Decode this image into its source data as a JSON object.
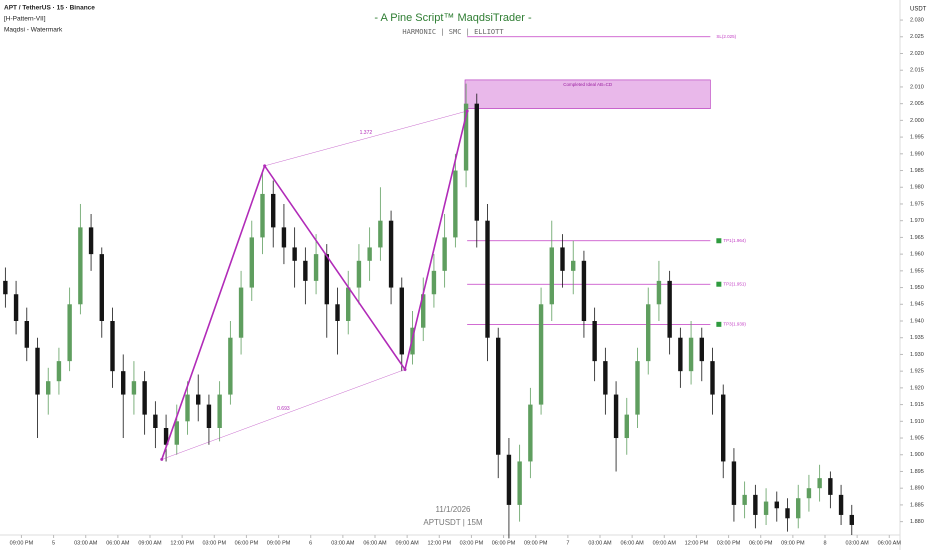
{
  "chart_data": {
    "type": "candlestick",
    "header": [
      "APT / TetherUS · 15 · Binance",
      "[H-Pattern-VII]",
      "Maqdsi - Watermark"
    ],
    "title": "- A Pine Script™ MaqdsiTrader -",
    "subtitle": "HARMONIC | SMC | ELLIOTT",
    "watermark": [
      "11/1/2026",
      "APTUSDT | 15M"
    ],
    "y_axis_label": "USDT",
    "up_color": "#5f9e5f",
    "down_color": "#151515",
    "x": [
      0.5,
      1.5,
      2.5,
      3.5,
      4.5,
      5.5,
      6.5,
      7.5,
      8.5,
      9.5,
      10.5,
      11.5,
      12.5,
      13.5,
      14.5,
      15.5,
      16.5,
      17.5,
      18.5,
      19.5,
      20.5,
      21.5,
      22.5,
      23.5,
      24.5,
      25.5,
      26.5,
      27.5,
      28.5,
      29.5,
      30.5,
      31.5,
      32.5,
      33.5,
      34.5,
      35.5,
      36.5,
      37.5,
      38.5,
      39.5,
      40.5,
      41.5,
      42.5,
      43.5,
      44.5,
      45.5,
      46.5,
      47.5,
      48.5,
      49.5,
      50.5,
      51.5,
      52.5,
      53.5,
      54.5,
      55.5,
      56.5,
      57.5,
      58.5,
      59.5,
      60.5,
      61.5,
      62.5,
      63.5,
      64.5,
      65.5,
      66.5,
      67.5,
      68.5,
      69.5,
      70.5,
      71.5,
      72.5,
      73.5,
      74.5,
      75.5,
      76.5,
      77.5,
      78.5,
      79.5
    ],
    "open": [
      1.952,
      1.948,
      1.94,
      1.932,
      1.918,
      1.922,
      1.928,
      1.945,
      1.968,
      1.96,
      1.94,
      1.925,
      1.918,
      1.922,
      1.912,
      1.908,
      1.903,
      1.91,
      1.918,
      1.915,
      1.908,
      1.918,
      1.935,
      1.95,
      1.965,
      1.978,
      1.968,
      1.962,
      1.958,
      1.952,
      1.96,
      1.945,
      1.94,
      1.95,
      1.958,
      1.962,
      1.97,
      1.95,
      1.93,
      1.938,
      1.948,
      1.955,
      1.965,
      1.985,
      2.005,
      1.97,
      1.935,
      1.9,
      1.885,
      1.898,
      1.915,
      1.945,
      1.962,
      1.955,
      1.958,
      1.94,
      1.928,
      1.918,
      1.905,
      1.912,
      1.928,
      1.945,
      1.952,
      1.935,
      1.925,
      1.935,
      1.928,
      1.918,
      1.898,
      1.885,
      1.888,
      1.882,
      1.886,
      1.884,
      1.881,
      1.887,
      1.89,
      1.893,
      1.888,
      1.882
    ],
    "high": [
      1.956,
      1.952,
      1.944,
      1.935,
      1.926,
      1.932,
      1.95,
      1.975,
      1.972,
      1.962,
      1.944,
      1.93,
      1.928,
      1.925,
      1.916,
      1.912,
      1.915,
      1.922,
      1.924,
      1.918,
      1.922,
      1.94,
      1.955,
      1.97,
      1.985,
      1.982,
      1.975,
      1.968,
      1.962,
      1.966,
      1.963,
      1.95,
      1.955,
      1.963,
      1.968,
      1.98,
      1.973,
      1.953,
      1.943,
      1.953,
      1.96,
      1.972,
      1.99,
      2.011,
      2.008,
      1.975,
      1.938,
      1.905,
      1.903,
      1.92,
      1.95,
      1.97,
      1.966,
      1.964,
      1.961,
      1.944,
      1.932,
      1.922,
      1.917,
      1.932,
      1.95,
      1.958,
      1.955,
      1.938,
      1.94,
      1.938,
      1.932,
      1.921,
      1.902,
      1.892,
      1.891,
      1.89,
      1.889,
      1.887,
      1.891,
      1.894,
      1.897,
      1.895,
      1.891,
      1.885
    ],
    "low": [
      1.944,
      1.936,
      1.928,
      1.905,
      1.912,
      1.918,
      1.925,
      1.942,
      1.955,
      1.935,
      1.92,
      1.905,
      1.912,
      1.906,
      1.902,
      1.898,
      1.9,
      1.906,
      1.91,
      1.903,
      1.904,
      1.915,
      1.93,
      1.946,
      1.96,
      1.962,
      1.957,
      1.95,
      1.945,
      1.948,
      1.935,
      1.93,
      1.936,
      1.945,
      1.952,
      1.958,
      1.945,
      1.925,
      1.927,
      1.934,
      1.944,
      1.95,
      1.962,
      1.98,
      1.962,
      1.928,
      1.893,
      1.875,
      1.88,
      1.893,
      1.912,
      1.94,
      1.95,
      1.948,
      1.935,
      1.922,
      1.912,
      1.895,
      1.9,
      1.908,
      1.924,
      1.94,
      1.93,
      1.92,
      1.921,
      1.922,
      1.912,
      1.893,
      1.88,
      1.881,
      1.878,
      1.879,
      1.88,
      1.877,
      1.878,
      1.883,
      1.886,
      1.884,
      1.879,
      1.876
    ],
    "close": [
      1.948,
      1.94,
      1.932,
      1.918,
      1.922,
      1.928,
      1.945,
      1.968,
      1.96,
      1.94,
      1.925,
      1.918,
      1.922,
      1.912,
      1.908,
      1.903,
      1.91,
      1.918,
      1.915,
      1.908,
      1.918,
      1.935,
      1.95,
      1.965,
      1.978,
      1.968,
      1.962,
      1.958,
      1.952,
      1.96,
      1.945,
      1.94,
      1.95,
      1.958,
      1.962,
      1.97,
      1.95,
      1.93,
      1.938,
      1.948,
      1.955,
      1.965,
      1.985,
      2.005,
      1.97,
      1.935,
      1.9,
      1.885,
      1.898,
      1.915,
      1.945,
      1.962,
      1.955,
      1.958,
      1.94,
      1.928,
      1.918,
      1.905,
      1.912,
      1.928,
      1.945,
      1.952,
      1.935,
      1.925,
      1.935,
      1.928,
      1.918,
      1.898,
      1.885,
      1.888,
      1.882,
      1.886,
      1.884,
      1.881,
      1.887,
      1.89,
      1.893,
      1.888,
      1.882,
      1.879
    ],
    "pattern": {
      "color": "#b12bb8",
      "x": [
        15.1,
        24.7,
        37.8,
        43.6
      ],
      "y": [
        1.8986,
        1.9864,
        1.9255,
        2.0028
      ],
      "xb_ratio": 0.693,
      "ac_ratio": 1.372
    },
    "box": {
      "label": "Completed Ideal AB=CD",
      "x": [
        43.4,
        66.3
      ],
      "y": [
        2.0035,
        2.0121
      ],
      "color": "#e9b8ea"
    },
    "levels_x": [
      43.6,
      66.3
    ],
    "levels": [
      {
        "label": "SL(2.025)",
        "value": 2.025,
        "color": "#c23cc4"
      },
      {
        "label": "TP1(1.964)",
        "value": 1.964,
        "color": "#c23cc4"
      },
      {
        "label": "TP2(1.951)",
        "value": 1.951,
        "color": "#c23cc4"
      },
      {
        "label": "TP3(1.939)",
        "value": 1.939,
        "color": "#c23cc4"
      }
    ],
    "xlim": [
      0,
      84
    ],
    "xticks": [
      {
        "value": 2,
        "label": "09:00 PM"
      },
      {
        "value": 5,
        "label": "5"
      },
      {
        "value": 8,
        "label": "03:00 AM"
      },
      {
        "value": 11,
        "label": "06:00 AM"
      },
      {
        "value": 14,
        "label": "09:00 AM"
      },
      {
        "value": 17,
        "label": "12:00 PM"
      },
      {
        "value": 20,
        "label": "03:00 PM"
      },
      {
        "value": 23,
        "label": "06:00 PM"
      },
      {
        "value": 26,
        "label": "09:00 PM"
      },
      {
        "value": 29,
        "label": "6"
      },
      {
        "value": 32,
        "label": "03:00 AM"
      },
      {
        "value": 35,
        "label": "06:00 AM"
      },
      {
        "value": 38,
        "label": "09:00 AM"
      },
      {
        "value": 41,
        "label": "12:00 PM"
      },
      {
        "value": 44,
        "label": "03:00 PM"
      },
      {
        "value": 47,
        "label": "06:00 PM"
      },
      {
        "value": 50,
        "label": "09:00 PM"
      },
      {
        "value": 53,
        "label": "7"
      },
      {
        "value": 56,
        "label": "03:00 AM"
      },
      {
        "value": 59,
        "label": "06:00 AM"
      },
      {
        "value": 62,
        "label": "09:00 AM"
      },
      {
        "value": 65,
        "label": "12:00 PM"
      },
      {
        "value": 68,
        "label": "03:00 PM"
      },
      {
        "value": 71,
        "label": "06:00 PM"
      },
      {
        "value": 74,
        "label": "09:00 PM"
      },
      {
        "value": 77,
        "label": "8"
      },
      {
        "value": 80,
        "label": "03:00 AM"
      },
      {
        "value": 83,
        "label": "06:00 AM"
      }
    ],
    "ylim": [
      1.876,
      2.036
    ],
    "yticks": [
      {
        "value": 1.88,
        "label": "1.880"
      },
      1.885,
      {
        "value": 1.89,
        "label": "1.890"
      },
      1.895,
      {
        "value": 1.9,
        "label": "1.900"
      },
      1.905,
      {
        "value": 1.91,
        "label": "1.910"
      },
      1.915,
      {
        "value": 1.92,
        "label": "1.920"
      },
      1.925,
      {
        "value": 1.93,
        "label": "1.930"
      },
      1.935,
      {
        "value": 1.94,
        "label": "1.940"
      },
      1.945,
      {
        "value": 1.95,
        "label": "1.950"
      },
      1.955,
      {
        "value": 1.96,
        "label": "1.960"
      },
      1.965,
      {
        "value": 1.97,
        "label": "1.970"
      },
      1.975,
      {
        "value": 1.98,
        "label": "1.980"
      },
      1.985,
      {
        "value": 1.99,
        "label": "1.990"
      },
      1.995,
      {
        "value": 2.0,
        "label": "2.000"
      },
      2.005,
      {
        "value": 2.01,
        "label": "2.010"
      },
      2.015,
      {
        "value": 2.02,
        "label": "2.020"
      },
      2.025,
      {
        "value": 2.03,
        "label": "2.030"
      }
    ]
  }
}
